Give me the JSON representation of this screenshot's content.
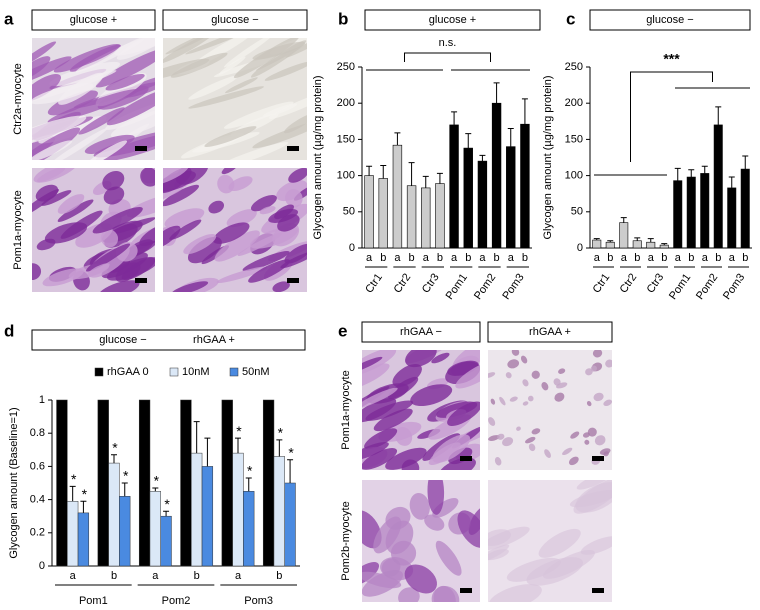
{
  "panel_labels": [
    "a",
    "b",
    "c",
    "d",
    "e"
  ],
  "image_panels": [
    {
      "column_headers": [
        "glucose +",
        "glucose −"
      ],
      "row_labels": [
        "Ctr2a-myocyte",
        "Pom1a-myocyte"
      ]
    },
    {
      "column_headers": [
        "rhGAA −",
        "rhGAA +"
      ],
      "row_labels": [
        "Pom1a-myocyte",
        "Pom2b-myocyte"
      ]
    }
  ],
  "chart_data": [
    {
      "type": "bar",
      "header": "glucose +",
      "ylabel": "Glycogen amount (µg/mg protein)",
      "categories": [
        "a",
        "b",
        "a",
        "b",
        "a",
        "b",
        "a",
        "b",
        "a",
        "b",
        "a",
        "b"
      ],
      "groups": [
        "Ctr1",
        "Ctr2",
        "Ctr3",
        "Pom1",
        "Pom2",
        "Pom3"
      ],
      "values": [
        100,
        96,
        142,
        86,
        83,
        89,
        170,
        138,
        120,
        200,
        140,
        171
      ],
      "errors": [
        13,
        18,
        17,
        32,
        16,
        14,
        18,
        20,
        8,
        28,
        25,
        35
      ],
      "colors": [
        "#cccccc",
        "#cccccc",
        "#cccccc",
        "#cccccc",
        "#cccccc",
        "#cccccc",
        "#000000",
        "#000000",
        "#000000",
        "#000000",
        "#000000",
        "#000000"
      ],
      "annotation": "n.s.",
      "ylim": [
        0,
        250
      ],
      "yticks": [
        0,
        50,
        100,
        150,
        200,
        250
      ]
    },
    {
      "type": "bar",
      "header": "glucose −",
      "ylabel": "Glycogen amount (µg/mg protein)",
      "categories": [
        "a",
        "b",
        "a",
        "b",
        "a",
        "b",
        "a",
        "b",
        "a",
        "b",
        "a",
        "b"
      ],
      "groups": [
        "Ctr1",
        "Ctr2",
        "Ctr3",
        "Pom1",
        "Pom2",
        "Pom3"
      ],
      "values": [
        11,
        8,
        35,
        10,
        8,
        4,
        93,
        98,
        103,
        170,
        83,
        109
      ],
      "errors": [
        2,
        2,
        7,
        4,
        5,
        2,
        17,
        10,
        10,
        25,
        15,
        18
      ],
      "colors": [
        "#cccccc",
        "#cccccc",
        "#cccccc",
        "#cccccc",
        "#cccccc",
        "#cccccc",
        "#000000",
        "#000000",
        "#000000",
        "#000000",
        "#000000",
        "#000000"
      ],
      "annotation": "***",
      "ylim": [
        0,
        250
      ],
      "yticks": [
        0,
        50,
        100,
        150,
        200,
        250
      ]
    },
    {
      "type": "grouped-bar",
      "header": [
        "glucose −",
        "rhGAA +"
      ],
      "ylabel": "Glycogen amount (Baseline=1)",
      "categories": [
        "a",
        "b",
        "a",
        "b",
        "a",
        "b"
      ],
      "groups": [
        "Pom1",
        "Pom2",
        "Pom3"
      ],
      "series": [
        {
          "name": "rhGAA 0",
          "color": "#000000",
          "values": [
            1,
            1,
            1,
            1,
            1,
            1
          ],
          "errors": [
            null,
            null,
            null,
            null,
            null,
            null
          ],
          "significance": [
            null,
            null,
            null,
            null,
            null,
            null
          ]
        },
        {
          "name": "10nM",
          "color": "#dbe8f7",
          "values": [
            0.39,
            0.62,
            0.45,
            0.68,
            0.68,
            0.66
          ],
          "errors": [
            0.09,
            0.05,
            0.02,
            0.19,
            0.09,
            0.1
          ],
          "significance": [
            "*",
            "*",
            "*",
            null,
            "*",
            "*"
          ]
        },
        {
          "name": "50nM",
          "color": "#4a8ae0",
          "values": [
            0.32,
            0.42,
            0.3,
            0.6,
            0.45,
            0.5
          ],
          "errors": [
            0.07,
            0.08,
            0.03,
            0.17,
            0.08,
            0.14
          ],
          "significance": [
            "*",
            "*",
            "*",
            null,
            "*",
            "*"
          ]
        }
      ],
      "ylim": [
        0,
        1
      ],
      "yticks": [
        0,
        0.2,
        0.4,
        0.6,
        0.8,
        1
      ]
    }
  ]
}
